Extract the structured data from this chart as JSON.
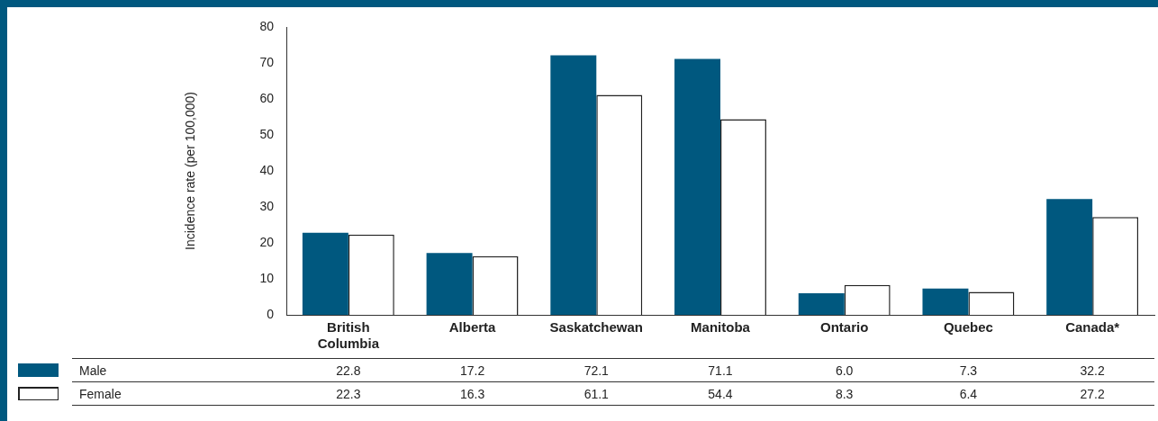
{
  "chart_data": {
    "type": "bar",
    "categories": [
      "British Columbia",
      "Alberta",
      "Saskatchewan",
      "Manitoba",
      "Ontario",
      "Quebec",
      "Canada*"
    ],
    "series": [
      {
        "name": "Male",
        "color": "#00587f",
        "values": [
          22.8,
          17.2,
          72.1,
          71.1,
          6.0,
          7.3,
          32.2
        ],
        "value_labels": [
          "22.8",
          "17.2",
          "72.1",
          "71.1",
          "6.0",
          "7.3",
          "32.2"
        ]
      },
      {
        "name": "Female",
        "color": "#ffffff",
        "values": [
          22.3,
          16.3,
          61.1,
          54.4,
          8.3,
          6.4,
          27.2
        ],
        "value_labels": [
          "22.3",
          "16.3",
          "61.1",
          "54.4",
          "8.3",
          "6.4",
          "27.2"
        ]
      }
    ],
    "ylabel": "Incidence rate (per 100,000)",
    "ylim": [
      0,
      80
    ],
    "yticks": [
      0,
      10,
      20,
      30,
      40,
      50,
      60,
      70,
      80
    ],
    "grid": false,
    "legend": "bottom left"
  }
}
